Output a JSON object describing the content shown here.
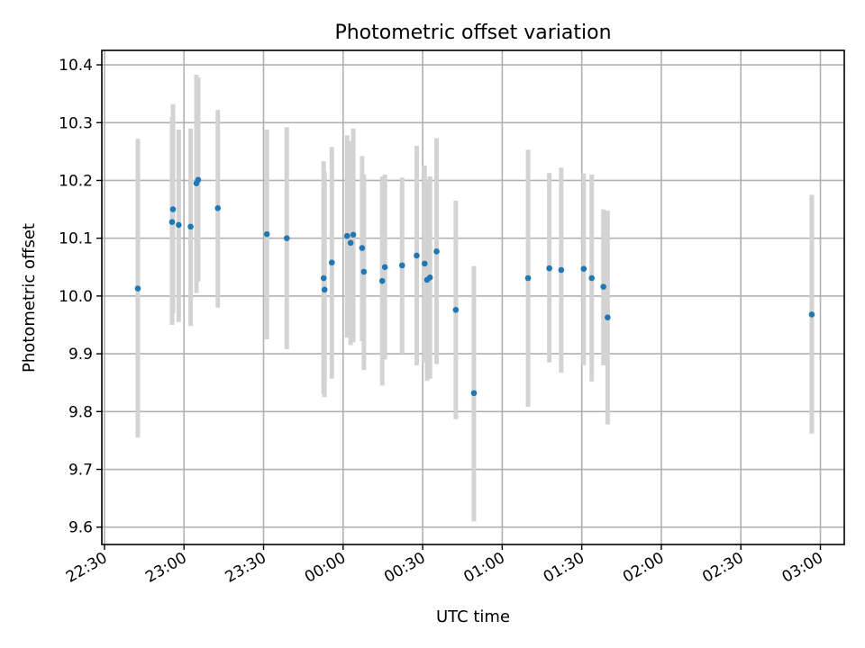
{
  "chart_data": {
    "type": "scatter",
    "title": "Photometric offset variation",
    "xlabel": "UTC time",
    "ylabel": "Photometric offset",
    "x_unit": "UTC clock time (HH:MM); values before 00:00 are on the first night, values from 00:00 on are after midnight",
    "xlim": [
      "22:29",
      "03:09"
    ],
    "ylim": [
      9.57,
      10.425
    ],
    "x_ticks": [
      "22:30",
      "23:00",
      "23:30",
      "00:00",
      "00:30",
      "01:00",
      "01:30",
      "02:00",
      "02:30",
      "03:00"
    ],
    "y_ticks": [
      9.6,
      9.7,
      9.8,
      9.9,
      10.0,
      10.1,
      10.2,
      10.3,
      10.4
    ],
    "y_tick_labels": [
      "9.6",
      "9.7",
      "9.8",
      "9.9",
      "10.0",
      "10.1",
      "10.2",
      "10.3",
      "10.4"
    ],
    "grid": true,
    "legend": "none",
    "point_color": "#1f77b4",
    "errorbar_color": "#d3d3d3",
    "points": [
      {
        "x": "22:42:35",
        "y": 10.013,
        "ylo": 9.755,
        "yhi": 10.272
      },
      {
        "x": "22:55:30",
        "y": 10.128,
        "ylo": 9.95,
        "yhi": 10.31
      },
      {
        "x": "22:55:50",
        "y": 10.15,
        "ylo": 9.97,
        "yhi": 10.332
      },
      {
        "x": "22:58:00",
        "y": 10.123,
        "ylo": 9.955,
        "yhi": 10.288
      },
      {
        "x": "23:02:30",
        "y": 10.12,
        "ylo": 9.948,
        "yhi": 10.29
      },
      {
        "x": "23:04:40",
        "y": 10.195,
        "ylo": 10.005,
        "yhi": 10.383
      },
      {
        "x": "23:05:20",
        "y": 10.201,
        "ylo": 10.025,
        "yhi": 10.378
      },
      {
        "x": "23:12:45",
        "y": 10.152,
        "ylo": 9.98,
        "yhi": 10.322
      },
      {
        "x": "23:31:15",
        "y": 10.107,
        "ylo": 9.925,
        "yhi": 10.288
      },
      {
        "x": "23:38:45",
        "y": 10.1,
        "ylo": 9.908,
        "yhi": 10.292
      },
      {
        "x": "23:52:40",
        "y": 10.031,
        "ylo": 9.83,
        "yhi": 10.233
      },
      {
        "x": "23:53:00",
        "y": 10.011,
        "ylo": 9.825,
        "yhi": 10.215
      },
      {
        "x": "23:55:45",
        "y": 10.058,
        "ylo": 9.857,
        "yhi": 10.258
      },
      {
        "x": "00:01:30",
        "y": 10.104,
        "ylo": 9.928,
        "yhi": 10.278
      },
      {
        "x": "00:02:50",
        "y": 10.092,
        "ylo": 9.915,
        "yhi": 10.268
      },
      {
        "x": "00:03:50",
        "y": 10.106,
        "ylo": 9.92,
        "yhi": 10.29
      },
      {
        "x": "00:07:10",
        "y": 10.083,
        "ylo": 9.922,
        "yhi": 10.242
      },
      {
        "x": "00:07:50",
        "y": 10.042,
        "ylo": 9.872,
        "yhi": 10.21
      },
      {
        "x": "00:14:45",
        "y": 10.026,
        "ylo": 9.845,
        "yhi": 10.207
      },
      {
        "x": "00:15:45",
        "y": 10.05,
        "ylo": 9.89,
        "yhi": 10.21
      },
      {
        "x": "00:22:15",
        "y": 10.053,
        "ylo": 9.9,
        "yhi": 10.205
      },
      {
        "x": "00:27:45",
        "y": 10.07,
        "ylo": 9.88,
        "yhi": 10.26
      },
      {
        "x": "00:30:45",
        "y": 10.056,
        "ylo": 9.885,
        "yhi": 10.226
      },
      {
        "x": "00:31:40",
        "y": 10.028,
        "ylo": 9.853,
        "yhi": 10.2
      },
      {
        "x": "00:32:45",
        "y": 10.032,
        "ylo": 9.857,
        "yhi": 10.207
      },
      {
        "x": "00:35:15",
        "y": 10.077,
        "ylo": 9.882,
        "yhi": 10.273
      },
      {
        "x": "00:42:30",
        "y": 9.976,
        "ylo": 9.787,
        "yhi": 10.165
      },
      {
        "x": "00:49:20",
        "y": 9.832,
        "ylo": 9.61,
        "yhi": 10.052
      },
      {
        "x": "01:09:45",
        "y": 10.031,
        "ylo": 9.808,
        "yhi": 10.253
      },
      {
        "x": "01:17:45",
        "y": 10.048,
        "ylo": 9.885,
        "yhi": 10.213
      },
      {
        "x": "01:22:15",
        "y": 10.045,
        "ylo": 9.867,
        "yhi": 10.222
      },
      {
        "x": "01:30:45",
        "y": 10.047,
        "ylo": 9.88,
        "yhi": 10.212
      },
      {
        "x": "01:33:45",
        "y": 10.031,
        "ylo": 9.852,
        "yhi": 10.21
      },
      {
        "x": "01:38:10",
        "y": 10.016,
        "ylo": 9.88,
        "yhi": 10.15
      },
      {
        "x": "01:39:45",
        "y": 9.963,
        "ylo": 9.778,
        "yhi": 10.148
      },
      {
        "x": "02:56:45",
        "y": 9.968,
        "ylo": 9.762,
        "yhi": 10.175
      }
    ]
  }
}
